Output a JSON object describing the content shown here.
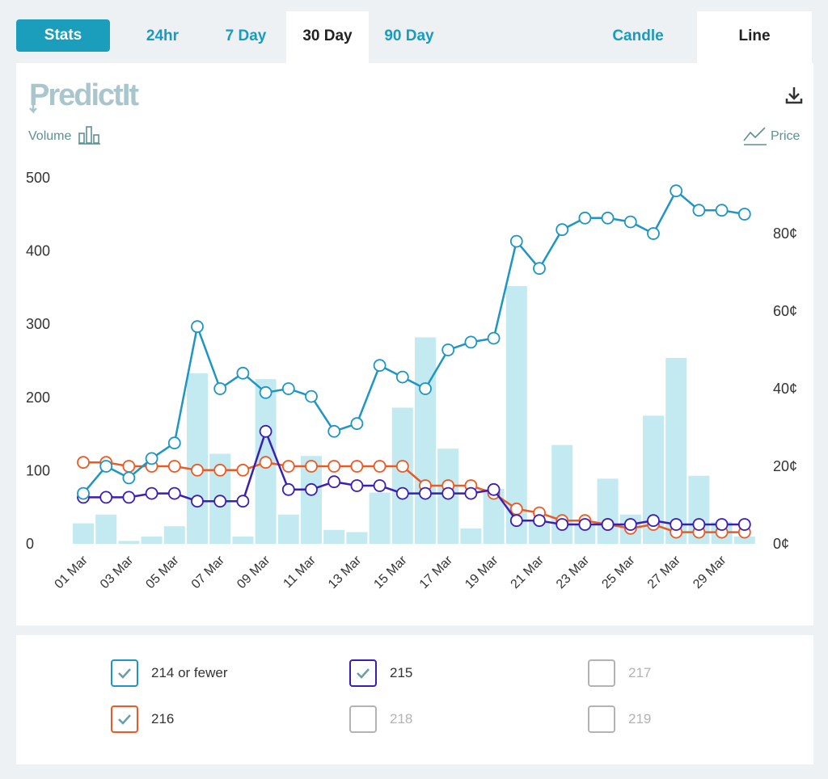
{
  "tabs": {
    "stats": "Stats",
    "range": [
      "24hr",
      "7 Day",
      "30 Day",
      "90 Day"
    ],
    "active_range": "30 Day",
    "mode": [
      "Candle",
      "Line"
    ],
    "active_mode": "Line"
  },
  "header": {
    "logo_text": "PredictIt",
    "volume_label": "Volume",
    "price_label": "Price",
    "download_icon": "download-icon"
  },
  "colors": {
    "accent": "#1b9ebc",
    "s214": "#1e95c4",
    "s215": "#3b1fb5",
    "s216": "#ec5a24",
    "volume_bar": "#c3e9f1",
    "disabled": "#b3b3b3"
  },
  "legend": [
    {
      "label": "214 or fewer",
      "checked": true,
      "color": "#1e95c4"
    },
    {
      "label": "215",
      "checked": true,
      "color": "#3b1fb5"
    },
    {
      "label": "217",
      "checked": false,
      "color": "#b3b3b3"
    },
    {
      "label": "216",
      "checked": true,
      "color": "#ec5a24"
    },
    {
      "label": "218",
      "checked": false,
      "color": "#b3b3b3"
    },
    {
      "label": "219",
      "checked": false,
      "color": "#b3b3b3"
    }
  ],
  "chart_data": {
    "type": "line",
    "x": [
      "01 Mar",
      "02 Mar",
      "03 Mar",
      "04 Mar",
      "05 Mar",
      "06 Mar",
      "07 Mar",
      "08 Mar",
      "09 Mar",
      "10 Mar",
      "11 Mar",
      "12 Mar",
      "13 Mar",
      "14 Mar",
      "15 Mar",
      "16 Mar",
      "17 Mar",
      "18 Mar",
      "19 Mar",
      "20 Mar",
      "21 Mar",
      "22 Mar",
      "23 Mar",
      "24 Mar",
      "25 Mar",
      "26 Mar",
      "27 Mar",
      "28 Mar",
      "29 Mar",
      "30 Mar"
    ],
    "xtick_labels": [
      "01 Mar",
      "03 Mar",
      "05 Mar",
      "07 Mar",
      "09 Mar",
      "11 Mar",
      "13 Mar",
      "15 Mar",
      "17 Mar",
      "19 Mar",
      "21 Mar",
      "23 Mar",
      "25 Mar",
      "27 Mar",
      "29 Mar"
    ],
    "y_left": {
      "label": "Volume",
      "ticks": [
        0,
        100,
        200,
        300,
        400,
        500
      ],
      "range": [
        0,
        500
      ]
    },
    "y_right": {
      "label": "Price",
      "tick_labels": [
        "0¢",
        "20¢",
        "40¢",
        "60¢",
        "80¢"
      ],
      "ticks": [
        0,
        20,
        40,
        60,
        80
      ],
      "range": [
        0,
        95
      ]
    },
    "volume": [
      28,
      40,
      4,
      10,
      24,
      233,
      123,
      10,
      225,
      40,
      120,
      19,
      16,
      70,
      186,
      282,
      130,
      21,
      75,
      352,
      30,
      135,
      28,
      89,
      40,
      175,
      254,
      93,
      30,
      10
    ],
    "series": [
      {
        "name": "214 or fewer",
        "values": [
          13,
          20,
          17,
          22,
          26,
          56,
          40,
          44,
          39,
          40,
          38,
          29,
          31,
          46,
          43,
          40,
          50,
          52,
          53,
          78,
          71,
          81,
          84,
          84,
          83,
          80,
          91,
          86,
          86,
          85
        ]
      },
      {
        "name": "215",
        "values": [
          12,
          12,
          12,
          13,
          13,
          11,
          11,
          11,
          29,
          14,
          14,
          16,
          15,
          15,
          13,
          13,
          13,
          13,
          14,
          6,
          6,
          5,
          5,
          5,
          5,
          6,
          5,
          5,
          5,
          5
        ]
      },
      {
        "name": "216",
        "values": [
          21,
          21,
          20,
          20,
          20,
          19,
          19,
          19,
          21,
          20,
          20,
          20,
          20,
          20,
          20,
          15,
          15,
          15,
          13,
          9,
          8,
          6,
          6,
          5,
          4,
          5,
          3,
          3,
          3,
          3
        ]
      }
    ]
  }
}
